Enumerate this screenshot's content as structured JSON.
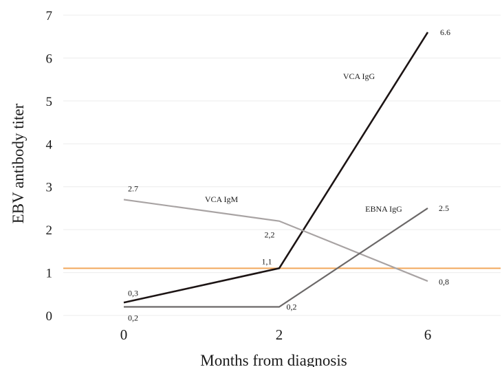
{
  "chart_data": {
    "type": "line",
    "xlabel": "Months from diagnosis",
    "ylabel": "EBV antibody titer",
    "categories": [
      "0",
      "2",
      "6"
    ],
    "ylim": [
      0,
      7
    ],
    "yticks": [
      "0",
      "1",
      "2",
      "3",
      "4",
      "5",
      "6",
      "7"
    ],
    "grid": "horizontal",
    "reference_line": {
      "value": 1.1,
      "color": "#f2a65a"
    },
    "series": [
      {
        "name": "VCA IgG",
        "values": [
          0.3,
          1.1,
          6.6
        ],
        "labels": [
          "0,3",
          "1,1",
          "6.6"
        ],
        "color": "#1c1414"
      },
      {
        "name": "VCA IgM",
        "values": [
          2.7,
          2.2,
          0.8
        ],
        "labels": [
          "2.7",
          "2,2",
          "0,8"
        ],
        "color": "#a8a3a3"
      },
      {
        "name": "EBNA IgG",
        "values": [
          0.2,
          0.2,
          2.5
        ],
        "labels": [
          "0,2",
          "0,2",
          "2.5"
        ],
        "color": "#6b6868"
      }
    ]
  }
}
